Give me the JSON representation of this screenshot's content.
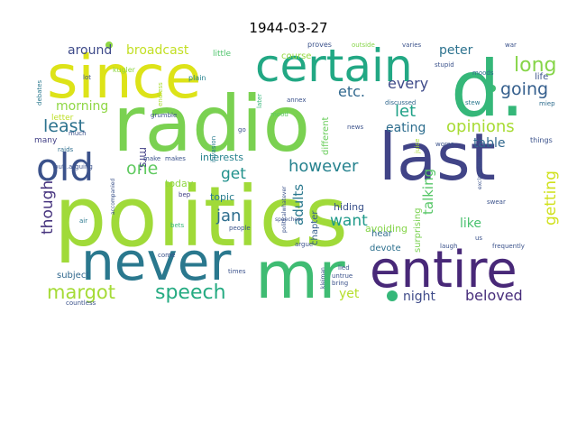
{
  "title": "1944-03-27",
  "words": [
    {
      "text": "politics",
      "color": "#a0da39"
    },
    {
      "text": "radio",
      "color": "#7ad151"
    },
    {
      "text": "d.",
      "color": "#35b779"
    },
    {
      "text": "since",
      "color": "#dde318"
    },
    {
      "text": "last",
      "color": "#414487"
    },
    {
      "text": "mr",
      "color": "#3fbc73"
    },
    {
      "text": "never",
      "color": "#2a788e"
    },
    {
      "text": "entire",
      "color": "#482878"
    },
    {
      "text": "certain",
      "color": "#22a884"
    },
    {
      "text": "old",
      "color": "#3b528b"
    },
    {
      "text": "long",
      "color": "#86d549"
    },
    {
      "text": "margot",
      "color": "#a5db36"
    },
    {
      "text": "speech",
      "color": "#25ab82"
    },
    {
      "text": "however",
      "color": "#26828e"
    },
    {
      "text": "opinions",
      "color": "#a8db34"
    },
    {
      "text": "least",
      "color": "#2c728e"
    },
    {
      "text": "one",
      "color": "#60ca60"
    },
    {
      "text": "going",
      "color": "#355f8d"
    },
    {
      "text": "getting",
      "color": "#d0e11c"
    },
    {
      "text": "though",
      "color": "#46337e"
    },
    {
      "text": "jan",
      "color": "#2e6e8e"
    },
    {
      "text": "want",
      "color": "#1f9a8a"
    },
    {
      "text": "beloved",
      "color": "#472d7b"
    },
    {
      "text": "etc.",
      "color": "#31688e"
    },
    {
      "text": "every",
      "color": "#3e4a89"
    },
    {
      "text": "let",
      "color": "#1fa187"
    },
    {
      "text": "talking",
      "color": "#56c667"
    },
    {
      "text": "adults",
      "color": "#2a788e"
    },
    {
      "text": "get",
      "color": "#21918c"
    },
    {
      "text": "eating",
      "color": "#2e6e8e"
    },
    {
      "text": "morning",
      "color": "#8fd744"
    },
    {
      "text": "around",
      "color": "#3e4a89"
    },
    {
      "text": "broadcast",
      "color": "#c2df23"
    },
    {
      "text": "peter",
      "color": "#2c728e"
    },
    {
      "text": "table",
      "color": "#31688e"
    },
    {
      "text": "night",
      "color": "#3e4a89"
    },
    {
      "text": "yet",
      "color": "#b5de2b"
    },
    {
      "text": "like",
      "color": "#48c16e"
    },
    {
      "text": "interests",
      "color": "#26828e"
    },
    {
      "text": "today",
      "color": "#90d743"
    },
    {
      "text": "topic",
      "color": "#287c8e"
    },
    {
      "text": "mrs.",
      "color": "#424086"
    },
    {
      "text": "subject",
      "color": "#31688e"
    },
    {
      "text": "hiding",
      "color": "#3b528b"
    },
    {
      "text": "avoiding",
      "color": "#86d549"
    },
    {
      "text": "chapter",
      "color": "#355f8d"
    },
    {
      "text": "different",
      "color": "#69cd5b"
    },
    {
      "text": "surprising",
      "color": "#7ad151"
    },
    {
      "text": "devote",
      "color": "#2d708e"
    },
    {
      "text": "hear",
      "color": "#2f6c8e"
    },
    {
      "text": "life",
      "color": "#3b528b"
    },
    {
      "text": "course",
      "color": "#95d840"
    },
    {
      "text": "little",
      "color": "#4ec36b"
    },
    {
      "text": "letter",
      "color": "#bddf26"
    },
    {
      "text": "many",
      "color": "#424086"
    },
    {
      "text": "kugler",
      "color": "#8fd744"
    },
    {
      "text": "proves",
      "color": "#3b528b"
    },
    {
      "text": "outside",
      "color": "#86d549"
    },
    {
      "text": "varies",
      "color": "#3b528b"
    },
    {
      "text": "stupid",
      "color": "#3b528b"
    },
    {
      "text": "moods",
      "color": "#2e6e8e"
    },
    {
      "text": "war",
      "color": "#3b528b"
    },
    {
      "text": "miep",
      "color": "#2f6c8e"
    },
    {
      "text": "things",
      "color": "#3b528b"
    },
    {
      "text": "plain",
      "color": "#26828e"
    },
    {
      "text": "endless",
      "color": "#aadc32"
    },
    {
      "text": "lot",
      "color": "#3b528b"
    },
    {
      "text": "debates",
      "color": "#2a788e"
    },
    {
      "text": "later",
      "color": "#35b779"
    },
    {
      "text": "annex",
      "color": "#3b528b"
    },
    {
      "text": "mood",
      "color": "#5ec962"
    },
    {
      "text": "news",
      "color": "#3b528b"
    },
    {
      "text": "discussed",
      "color": "#31688e"
    },
    {
      "text": "stew",
      "color": "#2a788e"
    },
    {
      "text": "much",
      "color": "#3b528b"
    },
    {
      "text": "raids",
      "color": "#2e6e8e"
    },
    {
      "text": "but..arguing",
      "color": "#3b528b"
    },
    {
      "text": "grumble",
      "color": "#3b528b"
    },
    {
      "text": "makes",
      "color": "#3b528b"
    },
    {
      "text": "make",
      "color": "#3b528b"
    },
    {
      "text": "go",
      "color": "#3b528b"
    },
    {
      "text": "invasion",
      "color": "#287c8e"
    },
    {
      "text": "juice",
      "color": "#aadc32"
    },
    {
      "text": "worse",
      "color": "#3b528b"
    },
    {
      "text": "exclamation",
      "color": "#3b528b"
    },
    {
      "text": "bep",
      "color": "#424086"
    },
    {
      "text": "swear",
      "color": "#3b528b"
    },
    {
      "text": "accompanied",
      "color": "#3b528b"
    },
    {
      "text": "air",
      "color": "#2a788e"
    },
    {
      "text": "bets",
      "color": "#35b779"
    },
    {
      "text": "people",
      "color": "#3b528b"
    },
    {
      "text": "politicalwhatever",
      "color": "#3b528b"
    },
    {
      "text": "speeches",
      "color": "#3b528b"
    },
    {
      "text": "argue",
      "color": "#3b528b"
    },
    {
      "text": "laugh",
      "color": "#3b528b"
    },
    {
      "text": "us",
      "color": "#3b528b"
    },
    {
      "text": "frequently",
      "color": "#3b528b"
    },
    {
      "text": "kleiman",
      "color": "#3b528b"
    },
    {
      "text": "lied",
      "color": "#3b528b"
    },
    {
      "text": "untrue",
      "color": "#3b528b"
    },
    {
      "text": "bring",
      "color": "#3b528b"
    },
    {
      "text": "times",
      "color": "#3b528b"
    },
    {
      "text": "come",
      "color": "#3b528b"
    },
    {
      "text": "countless",
      "color": "#3b528b"
    }
  ]
}
